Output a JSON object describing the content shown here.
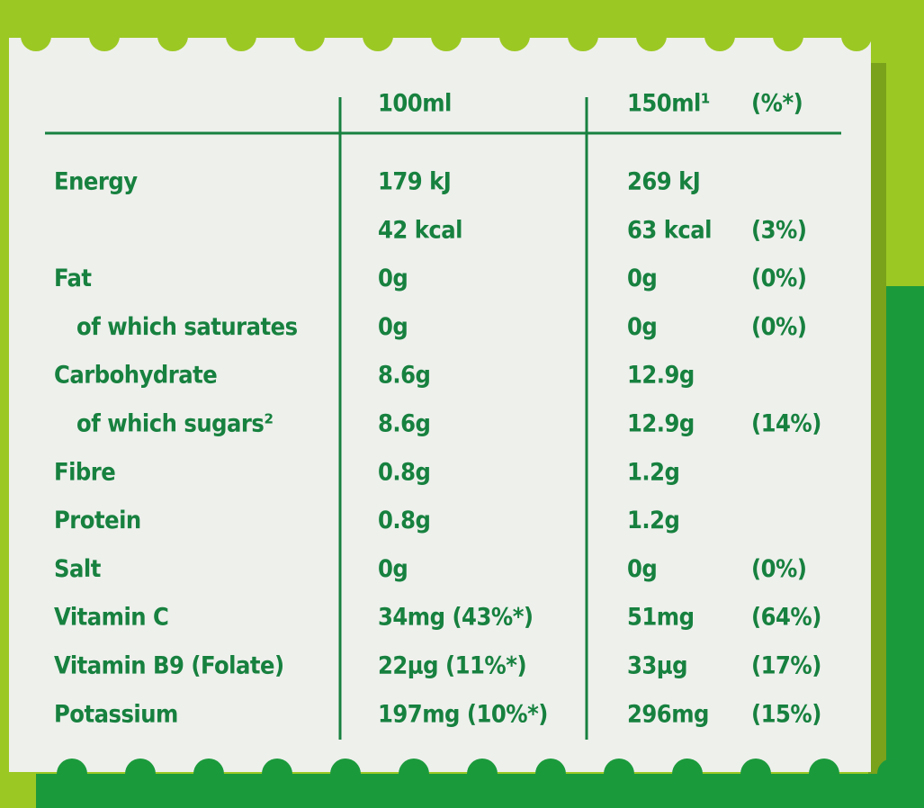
{
  "table": {
    "header": [
      "100ml",
      "150ml¹",
      "(%*)"
    ],
    "rows": [
      [
        "Energy",
        "179 kJ",
        "269 kJ",
        null
      ],
      [
        null,
        "42 kcal",
        "63 kcal",
        "(3%)"
      ],
      [
        "Fat",
        "0g",
        "0g",
        "(0%)"
      ],
      [
        "of which saturates",
        "0g",
        "0g",
        "(0%)"
      ],
      [
        "Carbohydrate",
        "8.6g",
        "12.9g",
        null
      ],
      [
        "of which sugars²",
        "8.6g",
        "12.9g",
        "(14%)"
      ],
      [
        "Fibre",
        "0.8g",
        "1.2g",
        null
      ],
      [
        "Protein",
        "0.8g",
        "1.2g",
        null
      ],
      [
        "Salt",
        "0g",
        "0g",
        "(0%)"
      ],
      [
        "Vitamin C",
        "34mg (43%*)",
        "51mg",
        "(64%)"
      ],
      [
        "Vitamin B9 (Folate)",
        "22µg (11%*)",
        "33µg",
        "(17%)"
      ],
      [
        "Potassium",
        "197mg (10%*)",
        "296mg",
        "(15%)"
      ]
    ]
  }
}
